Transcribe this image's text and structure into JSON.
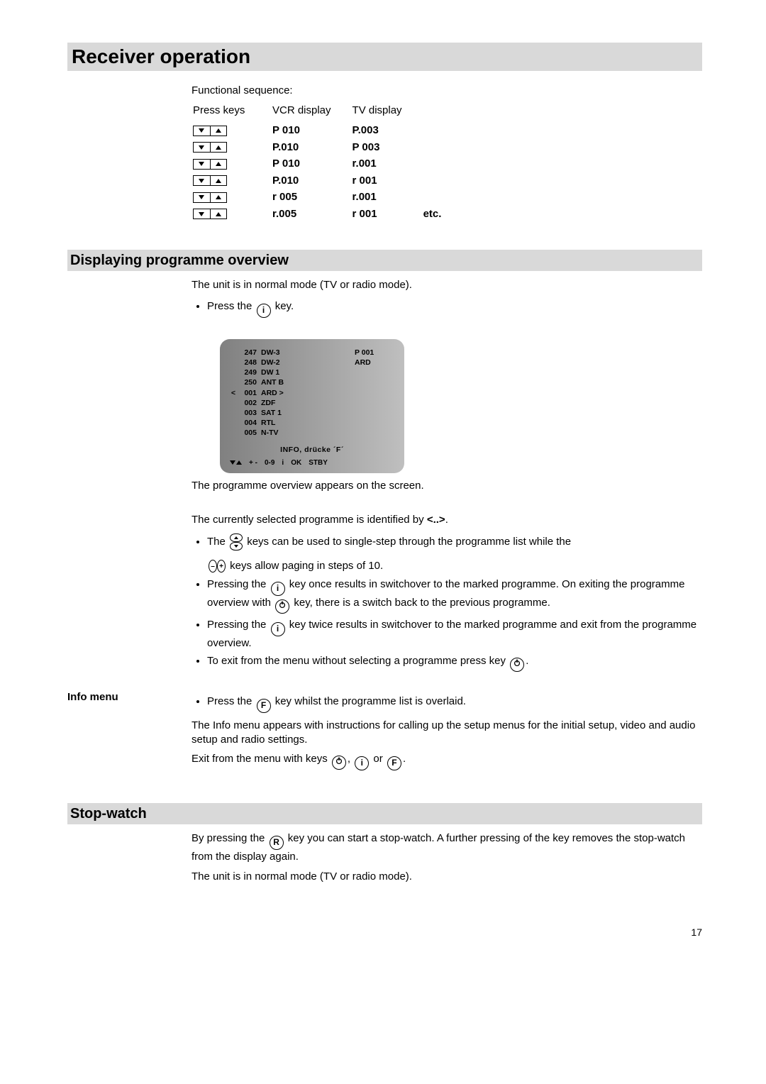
{
  "page": {
    "number": "17"
  },
  "title": "Receiver operation",
  "seq": {
    "label": "Functional sequence:",
    "headers": [
      "Press keys",
      "VCR display",
      "TV display"
    ],
    "rows": [
      {
        "vcr": "P 010",
        "tv": "P.003",
        "etc": ""
      },
      {
        "vcr": "P.010",
        "tv": "P 003",
        "etc": ""
      },
      {
        "vcr": "P 010",
        "tv": "r.001",
        "etc": ""
      },
      {
        "vcr": "P.010",
        "tv": "r 001",
        "etc": ""
      },
      {
        "vcr": "r 005",
        "tv": "r.001",
        "etc": ""
      },
      {
        "vcr": "r.005",
        "tv": "r 001",
        "etc": "etc."
      }
    ]
  },
  "overview": {
    "heading": "Displaying programme overview",
    "intro": "The unit is in normal mode (TV or radio mode).",
    "press_the": "Press the",
    "key_word": "key.",
    "osd": {
      "right_p": "P 001",
      "right_name": "ARD",
      "rows": [
        {
          "pre": "",
          "num": "247",
          "name": "DW-3",
          "post": ""
        },
        {
          "pre": "",
          "num": "248",
          "name": "DW-2",
          "post": ""
        },
        {
          "pre": "",
          "num": "249",
          "name": "DW 1",
          "post": ""
        },
        {
          "pre": "",
          "num": "250",
          "name": "ANT B",
          "post": ""
        },
        {
          "pre": "<",
          "num": "001",
          "name": "ARD",
          "post": ">"
        },
        {
          "pre": "",
          "num": "002",
          "name": "ZDF",
          "post": ""
        },
        {
          "pre": "",
          "num": "003",
          "name": "SAT 1",
          "post": ""
        },
        {
          "pre": "",
          "num": "004",
          "name": "RTL",
          "post": ""
        },
        {
          "pre": "",
          "num": "005",
          "name": "N-TV",
          "post": ""
        }
      ],
      "footer1": "INFO,   drücke  ´F´",
      "footer2": [
        "+ -",
        "0-9",
        "i",
        "OK",
        "STBY"
      ]
    },
    "after_osd": "The programme overview appears on the screen.",
    "marker_line_a": "The currently selected programme is identified by ",
    "marker_token": "<..>",
    "marker_line_b": ".",
    "b1a": "The",
    "b1b": "keys can be used to single-step through the programme list while the",
    "b1c": "keys allow paging in steps of 10.",
    "b2a": "Pressing the",
    "b2b": "key once results in switchover to the marked programme. On exiting the programme overview with",
    "b2c": "key, there is a switch back to the previous programme.",
    "b3a": "Pressing the",
    "b3b": "key twice results in switchover to the marked programme and exit from the programme overview.",
    "b4a": "To exit from the menu without selecting a programme press key",
    "b4b": "."
  },
  "info": {
    "side": "Info menu",
    "b1a": "Press the",
    "b1b": "key whilst the programme list is overlaid.",
    "p1": "The Info menu appears with instructions for calling up the setup menus for the initial setup, video and audio setup and radio settings.",
    "p2a": "Exit from the menu with keys",
    "p2b": ",",
    "p2c": "or",
    "p2d": "."
  },
  "stopwatch": {
    "heading": "Stop-watch",
    "p1a": "By pressing the",
    "p1b": "key you can start a stop-watch. A further pressing of the key removes the stop-watch from the display again.",
    "p2": "The unit is in normal mode (TV or radio mode)."
  },
  "icons": {
    "i": "i",
    "f": "F",
    "r": "R",
    "plus": "+",
    "minus": "–"
  }
}
